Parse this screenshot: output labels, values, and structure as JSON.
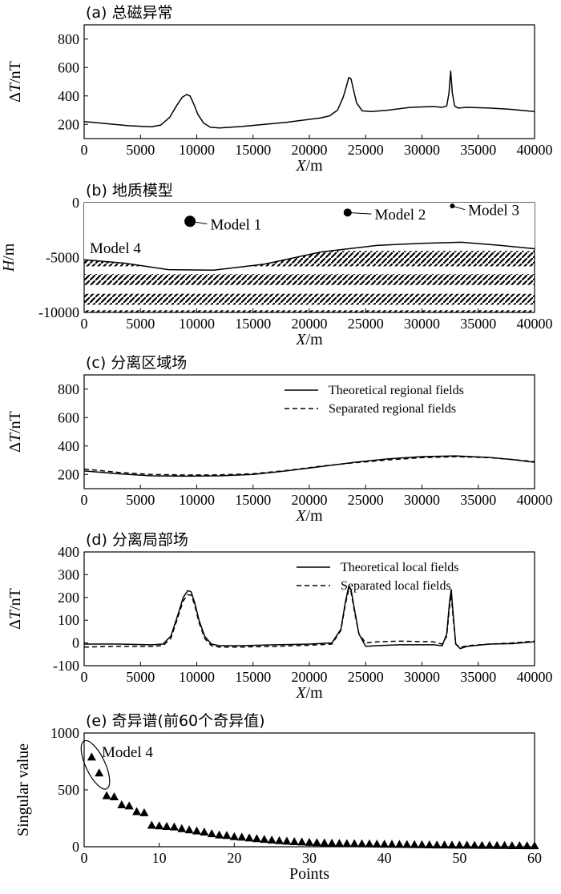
{
  "chart_data": [
    {
      "id": "a",
      "type": "line",
      "title": "(a) 总磁异常",
      "xlabel_italic": "X",
      "xlabel_unit": "/m",
      "ylabel_prefix": "Δ",
      "ylabel_italic": "T",
      "ylabel_unit": "/nT",
      "xlim": [
        0,
        40000
      ],
      "ylim": [
        100,
        900
      ],
      "xticks": [
        0,
        5000,
        10000,
        15000,
        20000,
        25000,
        30000,
        35000,
        40000
      ],
      "yticks": [
        200,
        400,
        600,
        800
      ],
      "series": [
        {
          "style": "solid",
          "x": [
            0,
            2000,
            4000,
            6000,
            6800,
            7600,
            8200,
            8700,
            9100,
            9400,
            9700,
            10100,
            10600,
            11200,
            12000,
            14000,
            16000,
            18000,
            20000,
            21000,
            21800,
            22500,
            23000,
            23300,
            23500,
            23700,
            23900,
            24200,
            24700,
            25500,
            27000,
            29000,
            31000,
            31800,
            32200,
            32400,
            32550,
            32700,
            32900,
            33200,
            34000,
            36000,
            38000,
            40000
          ],
          "y": [
            220,
            205,
            190,
            183,
            195,
            250,
            330,
            390,
            410,
            400,
            350,
            270,
            210,
            180,
            175,
            185,
            200,
            215,
            235,
            245,
            260,
            300,
            390,
            470,
            530,
            520,
            450,
            350,
            295,
            290,
            300,
            320,
            325,
            320,
            330,
            420,
            575,
            420,
            330,
            315,
            320,
            315,
            305,
            290
          ]
        }
      ]
    },
    {
      "id": "b",
      "type": "diagram",
      "title": "(b) 地质模型",
      "xlabel_italic": "X",
      "xlabel_unit": "/m",
      "ylabel_italic": "H",
      "ylabel_unit": "/m",
      "xlim": [
        0,
        40000
      ],
      "ylim": [
        -10000,
        0
      ],
      "xticks": [
        0,
        5000,
        10000,
        15000,
        20000,
        25000,
        30000,
        35000,
        40000
      ],
      "yticks": [
        0,
        -5000,
        -10000
      ],
      "ytick_labels": [
        "0",
        "-5000",
        "-10000"
      ],
      "bodies": [
        {
          "label": "Model 1",
          "x": 9400,
          "y": -1700,
          "size": "large",
          "label_x": 11200,
          "label_y": -2300
        },
        {
          "label": "Model 2",
          "x": 23400,
          "y": -900,
          "size": "medium",
          "label_x": 25800,
          "label_y": -1400
        },
        {
          "label": "Model 3",
          "x": 32700,
          "y": -300,
          "size": "small",
          "label_x": 34100,
          "label_y": -1000
        }
      ],
      "model4_label": "Model 4",
      "model4_label_pos": {
        "x": 500,
        "y": -4600
      },
      "surface": {
        "x": [
          0,
          3500,
          7500,
          11500,
          16000,
          21000,
          26000,
          30000,
          33500,
          37000,
          40000
        ],
        "y": [
          -5200,
          -5500,
          -6100,
          -6150,
          -5600,
          -4500,
          -3900,
          -3700,
          -3600,
          -3900,
          -4200
        ]
      },
      "hatch_bands": [
        [
          -4400,
          -5800
        ],
        [
          -6500,
          -7500
        ],
        [
          -8300,
          -9300
        ],
        [
          -9800,
          -10000
        ]
      ]
    },
    {
      "id": "c",
      "type": "line",
      "title": "(c) 分离区域场",
      "xlabel_italic": "X",
      "xlabel_unit": "/m",
      "ylabel_prefix": "Δ",
      "ylabel_italic": "T",
      "ylabel_unit": "/nT",
      "xlim": [
        0,
        40000
      ],
      "ylim": [
        100,
        900
      ],
      "xticks": [
        0,
        5000,
        10000,
        15000,
        20000,
        25000,
        30000,
        35000,
        40000
      ],
      "yticks": [
        200,
        400,
        600,
        800
      ],
      "legend": "top-right",
      "series": [
        {
          "name": "Theoretical regional fields",
          "style": "solid",
          "x": [
            0,
            3000,
            6000,
            9000,
            12000,
            15000,
            18000,
            21000,
            24000,
            27000,
            30000,
            33000,
            36000,
            38000,
            40000
          ],
          "y": [
            225,
            205,
            190,
            188,
            190,
            200,
            225,
            255,
            285,
            310,
            325,
            330,
            320,
            305,
            285
          ]
        },
        {
          "name": "Separated regional fields",
          "style": "dashed",
          "x": [
            0,
            3000,
            6000,
            9000,
            12000,
            15000,
            18000,
            21000,
            24000,
            27000,
            30000,
            33000,
            36000,
            38000,
            40000
          ],
          "y": [
            238,
            215,
            200,
            196,
            197,
            205,
            228,
            258,
            282,
            302,
            318,
            325,
            318,
            305,
            290
          ]
        }
      ]
    },
    {
      "id": "d",
      "type": "line",
      "title": "(d) 分离局部场",
      "xlabel_italic": "X",
      "xlabel_unit": "/m",
      "ylabel_prefix": "Δ",
      "ylabel_italic": "T",
      "ylabel_unit": "/nT",
      "xlim": [
        0,
        40000
      ],
      "ylim": [
        -100,
        400
      ],
      "xticks": [
        0,
        5000,
        10000,
        15000,
        20000,
        25000,
        30000,
        35000,
        40000
      ],
      "yticks": [
        -100,
        0,
        100,
        200,
        300,
        400
      ],
      "legend": "top-right",
      "series": [
        {
          "name": "Theoretical local fields",
          "style": "solid",
          "x": [
            0,
            3000,
            6000,
            7000,
            7700,
            8300,
            8800,
            9200,
            9500,
            9800,
            10200,
            10700,
            11300,
            12000,
            14000,
            17000,
            20000,
            22000,
            22800,
            23200,
            23500,
            23700,
            24000,
            24400,
            25000,
            26000,
            28000,
            31000,
            31800,
            32200,
            32450,
            32600,
            32750,
            33000,
            33400,
            34000,
            36000,
            38000,
            40000
          ],
          "y": [
            -5,
            -5,
            -8,
            -5,
            30,
            120,
            200,
            230,
            225,
            180,
            100,
            30,
            -5,
            -12,
            -12,
            -8,
            -5,
            0,
            60,
            180,
            250,
            235,
            150,
            40,
            -15,
            -12,
            -8,
            -8,
            -12,
            40,
            180,
            235,
            140,
            -5,
            -25,
            -15,
            -5,
            -3,
            5
          ]
        },
        {
          "name": "Separated local fields",
          "style": "dashed",
          "x": [
            0,
            3000,
            6000,
            7000,
            7700,
            8300,
            8800,
            9200,
            9500,
            9800,
            10200,
            10700,
            11300,
            12000,
            14000,
            17000,
            20000,
            22000,
            22800,
            23200,
            23500,
            23700,
            24000,
            24400,
            25000,
            26000,
            28000,
            31000,
            31800,
            32200,
            32450,
            32600,
            32750,
            33000,
            33400,
            34000,
            36000,
            38000,
            40000
          ],
          "y": [
            -18,
            -15,
            -15,
            -12,
            20,
            110,
            185,
            212,
            210,
            170,
            90,
            20,
            -12,
            -18,
            -18,
            -15,
            -10,
            -5,
            55,
            170,
            235,
            225,
            140,
            40,
            0,
            5,
            8,
            5,
            -5,
            30,
            160,
            215,
            120,
            -5,
            -20,
            -12,
            -5,
            0,
            8
          ]
        }
      ]
    },
    {
      "id": "e",
      "type": "scatter",
      "title": "(e) 奇异谱(前60个奇异值)",
      "xlabel": "Points",
      "ylabel": "Singular value",
      "xlim": [
        0,
        60
      ],
      "ylim": [
        0,
        1000
      ],
      "xticks": [
        0,
        10,
        20,
        30,
        40,
        50,
        60
      ],
      "yticks": [
        0,
        500,
        1000
      ],
      "annotation": "Model 4",
      "marker": "triangle",
      "series": [
        {
          "x": [
            1,
            2,
            3,
            4,
            5,
            6,
            7,
            8,
            9,
            10,
            11,
            12,
            13,
            14,
            15,
            16,
            17,
            18,
            19,
            20,
            21,
            22,
            23,
            24,
            25,
            26,
            27,
            28,
            29,
            30,
            31,
            32,
            33,
            34,
            35,
            36,
            37,
            38,
            39,
            40,
            41,
            42,
            43,
            44,
            45,
            46,
            47,
            48,
            49,
            50,
            51,
            52,
            53,
            54,
            55,
            56,
            57,
            58,
            59,
            60
          ],
          "y": [
            790,
            650,
            450,
            440,
            370,
            360,
            310,
            300,
            190,
            185,
            180,
            175,
            160,
            150,
            140,
            130,
            115,
            105,
            100,
            90,
            85,
            78,
            72,
            66,
            60,
            55,
            50,
            46,
            43,
            40,
            37,
            35,
            33,
            31,
            29,
            28,
            27,
            26,
            25,
            24,
            23,
            22,
            21,
            20,
            19,
            18,
            17,
            17,
            16,
            15,
            15,
            14,
            13,
            13,
            12,
            12,
            11,
            11,
            10,
            10
          ]
        }
      ]
    }
  ]
}
